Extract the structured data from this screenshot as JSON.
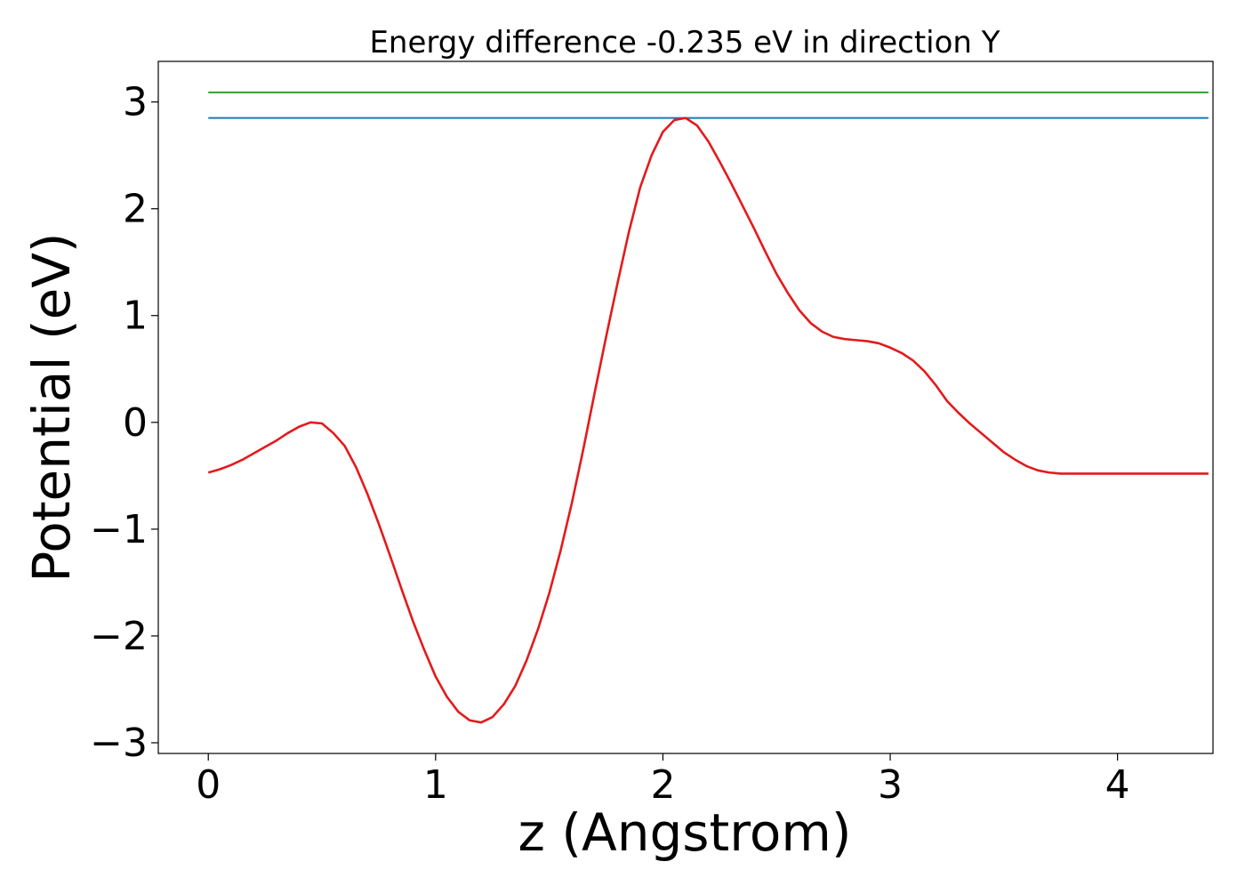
{
  "chart_data": {
    "type": "line",
    "title": "Energy difference -0.235 eV in direction Y",
    "xlabel": "z (Angstrom)",
    "ylabel": "Potential (eV)",
    "xlim": [
      -0.22,
      4.42
    ],
    "ylim": [
      -3.1,
      3.38
    ],
    "xticks": [
      0,
      1,
      2,
      3,
      4
    ],
    "xtick_labels": [
      "0",
      "1",
      "2",
      "3",
      "4"
    ],
    "yticks": [
      3,
      2,
      1,
      0,
      -1,
      -2,
      -3
    ],
    "ytick_labels": [
      "3",
      "2",
      "1",
      "0",
      "−1",
      "−2",
      "−3"
    ],
    "grid": false,
    "legend": "none",
    "series": [
      {
        "color": "#2ca02c",
        "x": [
          0,
          4.4
        ],
        "y": [
          3.09,
          3.09
        ]
      },
      {
        "color": "#1f77b4",
        "x": [
          0,
          4.4
        ],
        "y": [
          2.85,
          2.85
        ]
      },
      {
        "color": "#e31a1c",
        "x": [
          0,
          0.05,
          0.1,
          0.15,
          0.2,
          0.25,
          0.3,
          0.35,
          0.4,
          0.45,
          0.5,
          0.55,
          0.6,
          0.65,
          0.7,
          0.75,
          0.8,
          0.85,
          0.9,
          0.95,
          1.0,
          1.05,
          1.1,
          1.15,
          1.2,
          1.25,
          1.3,
          1.35,
          1.4,
          1.45,
          1.5,
          1.55,
          1.6,
          1.65,
          1.7,
          1.75,
          1.8,
          1.85,
          1.9,
          1.95,
          2.0,
          2.05,
          2.1,
          2.15,
          2.2,
          2.25,
          2.3,
          2.35,
          2.4,
          2.45,
          2.5,
          2.55,
          2.6,
          2.65,
          2.7,
          2.75,
          2.8,
          2.85,
          2.9,
          2.95,
          3.0,
          3.05,
          3.1,
          3.15,
          3.2,
          3.25,
          3.3,
          3.35,
          3.4,
          3.45,
          3.5,
          3.55,
          3.6,
          3.65,
          3.7,
          3.75,
          3.8,
          3.85,
          3.9,
          3.95,
          4.0,
          4.05,
          4.1,
          4.15,
          4.2,
          4.25,
          4.3,
          4.35,
          4.4
        ],
        "y": [
          -0.47,
          -0.44,
          -0.4,
          -0.35,
          -0.29,
          -0.23,
          -0.17,
          -0.1,
          -0.04,
          0.0,
          -0.01,
          -0.1,
          -0.22,
          -0.42,
          -0.67,
          -0.95,
          -1.25,
          -1.56,
          -1.86,
          -2.13,
          -2.38,
          -2.57,
          -2.71,
          -2.79,
          -2.81,
          -2.76,
          -2.64,
          -2.47,
          -2.23,
          -1.94,
          -1.6,
          -1.2,
          -0.75,
          -0.25,
          0.28,
          0.8,
          1.3,
          1.78,
          2.2,
          2.5,
          2.72,
          2.83,
          2.85,
          2.78,
          2.63,
          2.44,
          2.24,
          2.03,
          1.82,
          1.6,
          1.39,
          1.21,
          1.05,
          0.93,
          0.85,
          0.8,
          0.78,
          0.77,
          0.76,
          0.74,
          0.7,
          0.65,
          0.58,
          0.48,
          0.35,
          0.2,
          0.09,
          -0.01,
          -0.1,
          -0.19,
          -0.28,
          -0.35,
          -0.41,
          -0.45,
          -0.47,
          -0.48,
          -0.48,
          -0.48,
          -0.48,
          -0.48,
          -0.48,
          -0.48,
          -0.48,
          -0.48,
          -0.48,
          -0.48,
          -0.48,
          -0.48,
          -0.48
        ]
      }
    ]
  }
}
